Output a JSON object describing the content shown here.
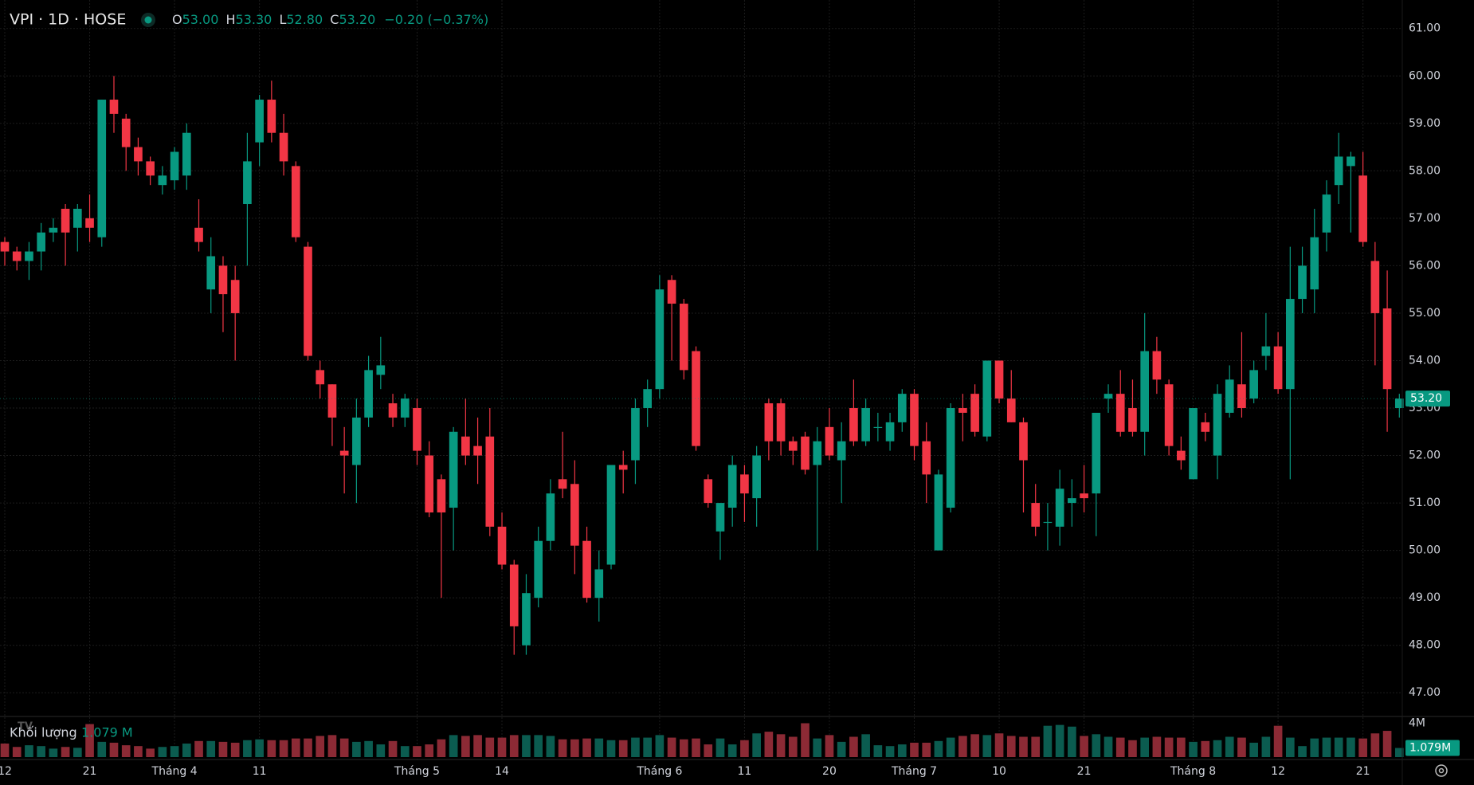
{
  "chart_data": {
    "type": "candlestick",
    "title": "VPI · 1D · HOSE",
    "ohlc_legend": {
      "open_label": "O",
      "open": "53.00",
      "high_label": "H",
      "high": "53.30",
      "low_label": "L",
      "low": "52.80",
      "close_label": "C",
      "close": "53.20",
      "change": "−0.20 (−0.37%)"
    },
    "volume_title": "Khối lượng",
    "volume_legend": "1.079 M",
    "up_color": "#089981",
    "down_color": "#f23645",
    "volume_up_color": "#0b5c50",
    "volume_down_color": "#8c2a35",
    "categories": [
      "12",
      null,
      null,
      null,
      null,
      null,
      null,
      "21",
      null,
      null,
      null,
      null,
      null,
      null,
      "Tháng 4",
      null,
      null,
      null,
      null,
      null,
      null,
      "11",
      null,
      null,
      null,
      null,
      null,
      null,
      null,
      null,
      null,
      null,
      null,
      null,
      "Tháng 5",
      null,
      null,
      null,
      null,
      null,
      null,
      "14",
      null,
      null,
      null,
      null,
      null,
      null,
      null,
      null,
      null,
      null,
      null,
      null,
      "Tháng 6",
      null,
      null,
      null,
      null,
      null,
      null,
      "11",
      null,
      null,
      null,
      null,
      null,
      null,
      "20",
      null,
      null,
      null,
      null,
      null,
      null,
      "Tháng 7",
      null,
      null,
      null,
      null,
      null,
      null,
      "10",
      null,
      null,
      null,
      null,
      null,
      null,
      "21",
      null,
      null,
      null,
      null,
      null,
      null,
      null,
      null,
      "Tháng 8",
      null,
      null,
      null,
      null,
      null,
      null,
      "12",
      null,
      null,
      null,
      null,
      null,
      null,
      "21",
      null,
      null,
      null
    ],
    "ohlc": [
      [
        56.5,
        56.6,
        56.0,
        56.3
      ],
      [
        56.3,
        56.4,
        55.9,
        56.1
      ],
      [
        56.1,
        56.5,
        55.7,
        56.3
      ],
      [
        56.3,
        56.9,
        55.9,
        56.7
      ],
      [
        56.7,
        57.0,
        56.5,
        56.8
      ],
      [
        57.2,
        57.3,
        56.0,
        56.7
      ],
      [
        56.8,
        57.3,
        56.3,
        57.2
      ],
      [
        57.0,
        57.5,
        56.5,
        56.8
      ],
      [
        56.6,
        59.5,
        56.4,
        59.5
      ],
      [
        59.5,
        60.0,
        58.8,
        59.2
      ],
      [
        59.1,
        59.2,
        58.0,
        58.5
      ],
      [
        58.5,
        58.7,
        57.9,
        58.2
      ],
      [
        58.2,
        58.3,
        57.7,
        57.9
      ],
      [
        57.7,
        58.1,
        57.5,
        57.9
      ],
      [
        57.8,
        58.5,
        57.6,
        58.4
      ],
      [
        57.9,
        59.0,
        57.6,
        58.8
      ],
      [
        56.8,
        57.4,
        56.3,
        56.5
      ],
      [
        55.5,
        56.6,
        55.0,
        56.2
      ],
      [
        56.0,
        56.2,
        54.6,
        55.4
      ],
      [
        55.7,
        56.0,
        54.0,
        55.0
      ],
      [
        57.3,
        58.8,
        56.0,
        58.2
      ],
      [
        58.6,
        59.6,
        58.1,
        59.5
      ],
      [
        59.5,
        59.9,
        58.6,
        58.8
      ],
      [
        58.8,
        59.2,
        57.9,
        58.2
      ],
      [
        58.1,
        58.2,
        56.5,
        56.6
      ],
      [
        56.4,
        56.5,
        54.0,
        54.1
      ],
      [
        53.8,
        54.0,
        53.2,
        53.5
      ],
      [
        53.5,
        53.5,
        52.2,
        52.8
      ],
      [
        52.1,
        52.6,
        51.2,
        52.0
      ],
      [
        51.8,
        53.2,
        51.0,
        52.8
      ],
      [
        52.8,
        54.1,
        52.6,
        53.8
      ],
      [
        53.7,
        54.5,
        53.4,
        53.9
      ],
      [
        53.1,
        53.3,
        52.6,
        52.8
      ],
      [
        52.8,
        53.3,
        52.6,
        53.2
      ],
      [
        53.0,
        53.2,
        51.8,
        52.1
      ],
      [
        52.0,
        52.3,
        50.7,
        50.8
      ],
      [
        51.5,
        51.6,
        49.0,
        50.8
      ],
      [
        50.9,
        52.6,
        50.0,
        52.5
      ],
      [
        52.4,
        53.2,
        51.8,
        52.0
      ],
      [
        52.2,
        52.8,
        51.4,
        52.0
      ],
      [
        52.4,
        53.0,
        50.3,
        50.5
      ],
      [
        50.5,
        50.8,
        49.6,
        49.7
      ],
      [
        49.7,
        49.8,
        47.8,
        48.4
      ],
      [
        48.0,
        49.5,
        47.8,
        49.1
      ],
      [
        49.0,
        50.5,
        48.8,
        50.2
      ],
      [
        50.2,
        51.5,
        50.0,
        51.2
      ],
      [
        51.5,
        52.5,
        51.1,
        51.3
      ],
      [
        51.4,
        51.9,
        49.5,
        50.1
      ],
      [
        50.2,
        50.5,
        48.9,
        49.0
      ],
      [
        49.0,
        50.0,
        48.5,
        49.6
      ],
      [
        49.7,
        51.8,
        49.6,
        51.8
      ],
      [
        51.8,
        52.1,
        51.2,
        51.7
      ],
      [
        51.9,
        53.2,
        51.4,
        53.0
      ],
      [
        53.0,
        53.6,
        52.6,
        53.4
      ],
      [
        53.4,
        55.8,
        53.2,
        55.5
      ],
      [
        55.7,
        55.8,
        54.0,
        55.2
      ],
      [
        55.2,
        55.3,
        53.6,
        53.8
      ],
      [
        54.2,
        54.3,
        52.1,
        52.2
      ],
      [
        51.5,
        51.6,
        50.9,
        51.0
      ],
      [
        50.4,
        51.0,
        49.8,
        51.0
      ],
      [
        50.9,
        52.0,
        50.5,
        51.8
      ],
      [
        51.6,
        51.8,
        50.6,
        51.2
      ],
      [
        51.1,
        52.2,
        50.5,
        52.0
      ],
      [
        53.1,
        53.2,
        51.9,
        52.3
      ],
      [
        53.1,
        53.2,
        52.0,
        52.3
      ],
      [
        52.3,
        52.4,
        51.8,
        52.1
      ],
      [
        52.4,
        52.5,
        51.6,
        51.7
      ],
      [
        51.8,
        52.6,
        50.0,
        52.3
      ],
      [
        52.6,
        53.0,
        51.9,
        52.0
      ],
      [
        51.9,
        52.7,
        51.0,
        52.3
      ],
      [
        53.0,
        53.6,
        52.2,
        52.3
      ],
      [
        52.3,
        53.2,
        52.2,
        53.0
      ],
      [
        52.6,
        52.9,
        52.3,
        52.6
      ],
      [
        52.3,
        52.9,
        52.1,
        52.7
      ],
      [
        52.7,
        53.4,
        52.5,
        53.3
      ],
      [
        53.3,
        53.4,
        51.9,
        52.2
      ],
      [
        52.3,
        52.7,
        51.0,
        51.6
      ],
      [
        50.0,
        51.7,
        50.0,
        51.6
      ],
      [
        50.9,
        53.1,
        50.8,
        53.0
      ],
      [
        53.0,
        53.3,
        52.3,
        52.9
      ],
      [
        53.3,
        53.5,
        52.4,
        52.5
      ],
      [
        52.4,
        54.0,
        52.3,
        54.0
      ],
      [
        54.0,
        54.0,
        53.1,
        53.2
      ],
      [
        53.2,
        53.8,
        52.7,
        52.7
      ],
      [
        52.7,
        52.8,
        50.8,
        51.9
      ],
      [
        51.0,
        51.4,
        50.3,
        50.5
      ],
      [
        50.6,
        51.0,
        50.0,
        50.6
      ],
      [
        50.5,
        51.7,
        50.1,
        51.3
      ],
      [
        51.0,
        51.5,
        50.5,
        51.1
      ],
      [
        51.2,
        51.8,
        50.8,
        51.1
      ],
      [
        51.2,
        52.9,
        50.3,
        52.9
      ],
      [
        53.2,
        53.5,
        52.9,
        53.3
      ],
      [
        53.3,
        53.8,
        52.4,
        52.5
      ],
      [
        53.0,
        53.6,
        52.4,
        52.5
      ],
      [
        52.5,
        55.0,
        52.0,
        54.2
      ],
      [
        54.2,
        54.5,
        53.3,
        53.6
      ],
      [
        53.5,
        53.6,
        52.0,
        52.2
      ],
      [
        52.1,
        52.4,
        51.7,
        51.9
      ],
      [
        51.5,
        53.0,
        51.5,
        53.0
      ],
      [
        52.7,
        52.9,
        52.3,
        52.5
      ],
      [
        52.0,
        53.5,
        51.5,
        53.3
      ],
      [
        52.9,
        53.9,
        52.8,
        53.6
      ],
      [
        53.5,
        54.6,
        52.8,
        53.0
      ],
      [
        53.2,
        54.0,
        53.1,
        53.8
      ],
      [
        54.1,
        55.0,
        53.8,
        54.3
      ],
      [
        54.3,
        54.6,
        53.3,
        53.4
      ],
      [
        53.4,
        56.4,
        51.5,
        55.3
      ],
      [
        55.3,
        56.4,
        55.0,
        56.0
      ],
      [
        55.5,
        57.2,
        55.0,
        56.6
      ],
      [
        56.7,
        57.8,
        56.3,
        57.5
      ],
      [
        57.7,
        58.8,
        57.3,
        58.3
      ],
      [
        58.1,
        58.4,
        56.7,
        58.3
      ],
      [
        57.9,
        58.4,
        56.4,
        56.5
      ],
      [
        56.1,
        56.5,
        53.9,
        55.0
      ],
      [
        55.1,
        55.9,
        52.5,
        53.4
      ],
      [
        53.0,
        53.3,
        52.8,
        53.2
      ]
    ],
    "volume": [
      1.6,
      1.2,
      1.4,
      1.3,
      1.0,
      1.2,
      1.1,
      3.9,
      1.8,
      1.7,
      1.4,
      1.3,
      1.0,
      1.2,
      1.3,
      1.6,
      1.9,
      1.9,
      1.8,
      1.7,
      2.0,
      2.1,
      2.0,
      2.0,
      2.2,
      2.2,
      2.5,
      2.6,
      2.2,
      1.8,
      1.9,
      1.5,
      1.9,
      1.3,
      1.3,
      1.5,
      2.1,
      2.6,
      2.5,
      2.6,
      2.3,
      2.3,
      2.6,
      2.6,
      2.6,
      2.5,
      2.1,
      2.1,
      2.2,
      2.2,
      2.0,
      2.0,
      2.3,
      2.3,
      2.6,
      2.3,
      2.1,
      2.2,
      1.5,
      2.2,
      1.5,
      2.0,
      2.8,
      3.0,
      2.7,
      2.4,
      4.0,
      2.2,
      2.6,
      1.8,
      2.4,
      2.7,
      1.4,
      1.3,
      1.5,
      1.7,
      1.7,
      1.9,
      2.3,
      2.5,
      2.7,
      2.6,
      2.8,
      2.5,
      2.4,
      2.4,
      3.7,
      3.8,
      3.6,
      2.5,
      2.7,
      2.4,
      2.3,
      2.0,
      2.3,
      2.4,
      2.3,
      2.3,
      1.8,
      1.9,
      2.0,
      2.4,
      2.3,
      1.7,
      2.4,
      3.7,
      2.3,
      1.3,
      2.2,
      2.3,
      2.3,
      2.3,
      2.2,
      2.8,
      3.1,
      1.079
    ],
    "ylim": [
      46.5,
      61.6
    ],
    "yticks": [
      {
        "value": 47,
        "label": "47.00"
      },
      {
        "value": 48,
        "label": "48.00"
      },
      {
        "value": 49,
        "label": "49.00"
      },
      {
        "value": 50,
        "label": "50.00"
      },
      {
        "value": 51,
        "label": "51.00"
      },
      {
        "value": 52,
        "label": "52.00"
      },
      {
        "value": 53,
        "label": "53.00"
      },
      {
        "value": 54,
        "label": "54.00"
      },
      {
        "value": 55,
        "label": "55.00"
      },
      {
        "value": 56,
        "label": "56.00"
      },
      {
        "value": 57,
        "label": "57.00"
      },
      {
        "value": 58,
        "label": "58.00"
      },
      {
        "value": 59,
        "label": "59.00"
      },
      {
        "value": 60,
        "label": "60.00"
      },
      {
        "value": 61,
        "label": "61.00"
      }
    ],
    "volume_lim": [
      0,
      4.8
    ],
    "volume_ticks": [
      {
        "value": 4,
        "label": "4M"
      }
    ],
    "last_price": {
      "value": 53.2,
      "label": "53.20"
    },
    "last_volume": {
      "value": 1.079,
      "label": "1.079M"
    },
    "grid": true
  }
}
